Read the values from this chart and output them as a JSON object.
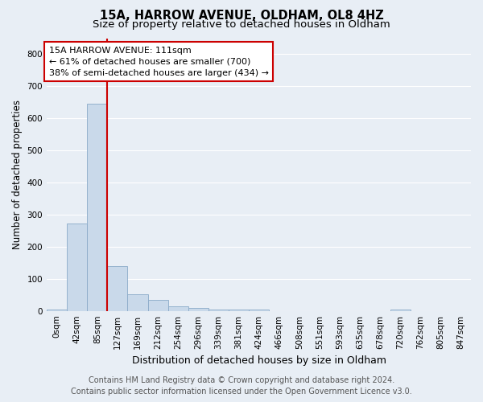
{
  "title": "15A, HARROW AVENUE, OLDHAM, OL8 4HZ",
  "subtitle": "Size of property relative to detached houses in Oldham",
  "xlabel": "Distribution of detached houses by size in Oldham",
  "ylabel": "Number of detached properties",
  "footer_line1": "Contains HM Land Registry data © Crown copyright and database right 2024.",
  "footer_line2": "Contains public sector information licensed under the Open Government Licence v3.0.",
  "bar_labels": [
    "0sqm",
    "42sqm",
    "85sqm",
    "127sqm",
    "169sqm",
    "212sqm",
    "254sqm",
    "296sqm",
    "339sqm",
    "381sqm",
    "424sqm",
    "466sqm",
    "508sqm",
    "551sqm",
    "593sqm",
    "635sqm",
    "678sqm",
    "720sqm",
    "762sqm",
    "805sqm",
    "847sqm"
  ],
  "bar_values": [
    3,
    272,
    645,
    140,
    52,
    35,
    15,
    8,
    5,
    4,
    3,
    0,
    0,
    0,
    0,
    0,
    0,
    4,
    0,
    0,
    0
  ],
  "bar_color": "#c9d9ea",
  "bar_edge_color": "#8aaac8",
  "ylim": [
    0,
    850
  ],
  "yticks": [
    0,
    100,
    200,
    300,
    400,
    500,
    600,
    700,
    800
  ],
  "vline_color": "#cc0000",
  "vline_x": 2.5,
  "annotation_line1": "15A HARROW AVENUE: 111sqm",
  "annotation_line2": "← 61% of detached houses are smaller (700)",
  "annotation_line3": "38% of semi-detached houses are larger (434) →",
  "annotation_box_color": "#ffffff",
  "annotation_box_edge": "#cc0000",
  "bg_color": "#e8eef5",
  "plot_bg_color": "#e8eef5",
  "grid_color": "#ffffff",
  "title_fontsize": 10.5,
  "subtitle_fontsize": 9.5,
  "axis_label_fontsize": 8.5,
  "tick_fontsize": 7.5,
  "annotation_fontsize": 8,
  "footer_fontsize": 7
}
